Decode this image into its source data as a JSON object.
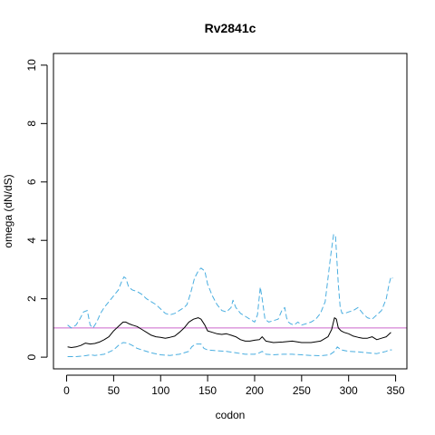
{
  "chart_data": {
    "type": "line",
    "title": "Rv2841c",
    "xlabel": "codon",
    "ylabel": "omega (dN/dS)",
    "xlim": [
      -14,
      362
    ],
    "ylim": [
      -0.4,
      10.4
    ],
    "xticks": [
      0,
      50,
      100,
      150,
      200,
      250,
      300,
      350
    ],
    "yticks": [
      0,
      2,
      4,
      6,
      8,
      10
    ],
    "grid": false,
    "reference_line": {
      "y": 1,
      "color": "#cc66cc"
    },
    "series": [
      {
        "role": "upper",
        "style": "dashed",
        "color": "#4aaee0",
        "x": [
          1,
          5,
          10,
          14,
          18,
          22,
          25,
          28,
          32,
          36,
          40,
          45,
          50,
          55,
          58,
          61,
          63,
          66,
          70,
          75,
          80,
          85,
          90,
          95,
          100,
          105,
          110,
          115,
          120,
          125,
          128,
          132,
          136,
          140,
          143,
          147,
          150,
          155,
          160,
          165,
          170,
          175,
          177,
          180,
          185,
          190,
          195,
          200,
          203,
          206,
          208,
          211,
          215,
          220,
          225,
          229,
          232,
          234,
          236,
          238,
          242,
          246,
          250,
          255,
          260,
          265,
          270,
          275,
          278,
          281,
          284,
          286,
          289,
          291,
          293,
          296,
          300,
          305,
          310,
          315,
          320,
          325,
          330,
          335,
          340,
          343,
          345,
          347
        ],
        "values": [
          1.1,
          1.0,
          1.1,
          1.3,
          1.55,
          1.6,
          1.1,
          1.0,
          1.2,
          1.5,
          1.7,
          1.9,
          2.1,
          2.3,
          2.55,
          2.75,
          2.7,
          2.4,
          2.3,
          2.25,
          2.15,
          2.0,
          1.9,
          1.8,
          1.65,
          1.5,
          1.45,
          1.5,
          1.6,
          1.7,
          1.8,
          2.2,
          2.7,
          2.95,
          3.05,
          2.95,
          2.5,
          2.1,
          1.8,
          1.6,
          1.55,
          1.7,
          1.95,
          1.7,
          1.5,
          1.4,
          1.3,
          1.2,
          1.45,
          2.4,
          2.0,
          1.3,
          1.2,
          1.25,
          1.3,
          1.6,
          1.7,
          1.35,
          1.2,
          1.15,
          1.1,
          1.2,
          1.1,
          1.15,
          1.2,
          1.3,
          1.5,
          1.9,
          2.7,
          3.5,
          4.2,
          4.15,
          2.5,
          1.7,
          1.5,
          1.5,
          1.55,
          1.6,
          1.7,
          1.5,
          1.35,
          1.3,
          1.45,
          1.6,
          2.0,
          2.5,
          2.75,
          2.7
        ]
      },
      {
        "role": "median",
        "style": "solid",
        "color": "#000000",
        "x": [
          1,
          5,
          10,
          15,
          20,
          25,
          30,
          35,
          40,
          45,
          50,
          55,
          60,
          63,
          66,
          70,
          75,
          80,
          85,
          90,
          95,
          100,
          105,
          110,
          115,
          120,
          125,
          130,
          135,
          140,
          143,
          147,
          150,
          155,
          160,
          165,
          170,
          175,
          180,
          185,
          190,
          195,
          200,
          205,
          208,
          212,
          220,
          230,
          240,
          250,
          260,
          270,
          278,
          282,
          285,
          287,
          289,
          292,
          295,
          300,
          305,
          310,
          315,
          320,
          325,
          330,
          335,
          340,
          345
        ],
        "values": [
          0.35,
          0.33,
          0.35,
          0.4,
          0.48,
          0.45,
          0.47,
          0.52,
          0.6,
          0.7,
          0.9,
          1.05,
          1.2,
          1.2,
          1.15,
          1.1,
          1.05,
          0.95,
          0.85,
          0.75,
          0.7,
          0.68,
          0.65,
          0.68,
          0.72,
          0.85,
          1.0,
          1.2,
          1.3,
          1.35,
          1.3,
          1.1,
          0.9,
          0.85,
          0.8,
          0.78,
          0.8,
          0.75,
          0.7,
          0.6,
          0.55,
          0.55,
          0.58,
          0.6,
          0.7,
          0.55,
          0.5,
          0.52,
          0.55,
          0.5,
          0.5,
          0.55,
          0.7,
          0.95,
          1.35,
          1.3,
          1.0,
          0.9,
          0.85,
          0.8,
          0.72,
          0.68,
          0.65,
          0.65,
          0.7,
          0.6,
          0.65,
          0.7,
          0.85
        ]
      },
      {
        "role": "lower",
        "style": "dashed",
        "color": "#4aaee0",
        "x": [
          1,
          10,
          20,
          25,
          30,
          40,
          50,
          55,
          60,
          65,
          70,
          75,
          80,
          90,
          100,
          110,
          120,
          130,
          133,
          137,
          143,
          146,
          150,
          160,
          170,
          180,
          190,
          200,
          205,
          208,
          212,
          220,
          230,
          240,
          250,
          260,
          270,
          280,
          285,
          288,
          292,
          300,
          310,
          320,
          330,
          340,
          343,
          346
        ],
        "values": [
          0.02,
          0.02,
          0.05,
          0.08,
          0.06,
          0.1,
          0.25,
          0.4,
          0.5,
          0.48,
          0.4,
          0.3,
          0.25,
          0.15,
          0.08,
          0.06,
          0.1,
          0.2,
          0.35,
          0.45,
          0.45,
          0.3,
          0.25,
          0.22,
          0.2,
          0.15,
          0.1,
          0.1,
          0.15,
          0.2,
          0.1,
          0.08,
          0.1,
          0.1,
          0.08,
          0.06,
          0.05,
          0.08,
          0.2,
          0.35,
          0.25,
          0.2,
          0.18,
          0.15,
          0.12,
          0.2,
          0.25,
          0.25
        ]
      }
    ]
  }
}
